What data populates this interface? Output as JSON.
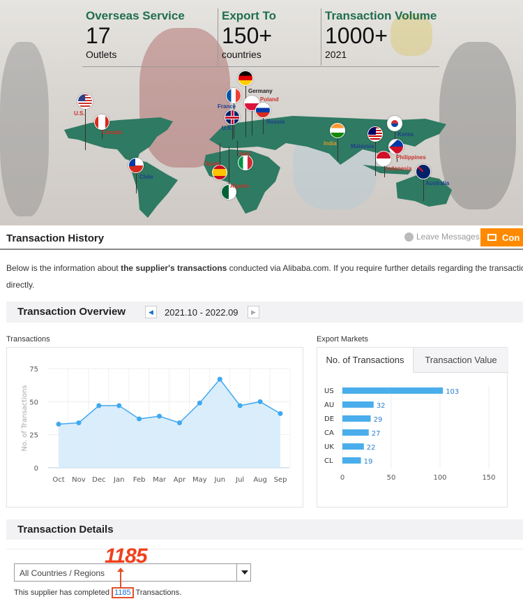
{
  "hero": {
    "stats": [
      {
        "title": "Overseas Service",
        "value": "17",
        "sub": "Outlets"
      },
      {
        "title": "Export To",
        "value": "150+",
        "sub": "countries"
      },
      {
        "title": "Transaction Volume",
        "value": "1000+",
        "sub": "2021"
      }
    ],
    "map_color": "#2e7a62",
    "countries": [
      "U.S.",
      "Canada",
      "Germany",
      "France",
      "Poland",
      "Russia",
      "U.K.",
      "Italy",
      "Spain",
      "Algeria",
      "Chile",
      "India",
      "Malaysia",
      "Korea",
      "Philippines",
      "Indonesia",
      "Australia"
    ]
  },
  "header": {
    "title": "Transaction History",
    "leave_messages": "Leave Messages",
    "contact_label": "Con",
    "contact_color": "#ff8a00"
  },
  "intro": {
    "text_before": "Below is the information about ",
    "text_bold": "the supplier's transactions",
    "text_after": " conducted via Alibaba.com. If you require further details regarding the transaction data,",
    "text_line2": "directly."
  },
  "overview": {
    "title": "Transaction Overview",
    "date_range": "2021.10 - 2022.09",
    "transactions_label": "Transactions",
    "export_markets_label": "Export Markets",
    "tabs": [
      "No. of Transactions",
      "Transaction Value"
    ]
  },
  "chart_data": [
    {
      "type": "area",
      "ylabel": "No. of Transactions",
      "categories": [
        "Oct",
        "Nov",
        "Dec",
        "Jan",
        "Feb",
        "Mar",
        "Apr",
        "May",
        "Jun",
        "Jul",
        "Aug",
        "Sep"
      ],
      "values": [
        33,
        34,
        47,
        47,
        37,
        39,
        34,
        49,
        67,
        47,
        50,
        41
      ],
      "ylim": [
        0,
        75
      ],
      "yticks": [
        "0",
        "25",
        "50",
        "75"
      ],
      "grid": true,
      "color": "#3fa9ef"
    },
    {
      "type": "bar",
      "orientation": "horizontal",
      "categories": [
        "US",
        "AU",
        "DE",
        "CA",
        "UK",
        "CL"
      ],
      "values": [
        103,
        32,
        29,
        27,
        22,
        19
      ],
      "xlim": [
        0,
        150
      ],
      "xticks": [
        "0",
        "50",
        "100",
        "150"
      ],
      "grid": true,
      "color": "#4aaeec"
    }
  ],
  "details": {
    "title": "Transaction Details",
    "select_value": "All Countries / Regions",
    "annotation": "1185",
    "completed_before": "This supplier has completed ",
    "completed_count": "1185",
    "completed_after": " Transactions."
  }
}
